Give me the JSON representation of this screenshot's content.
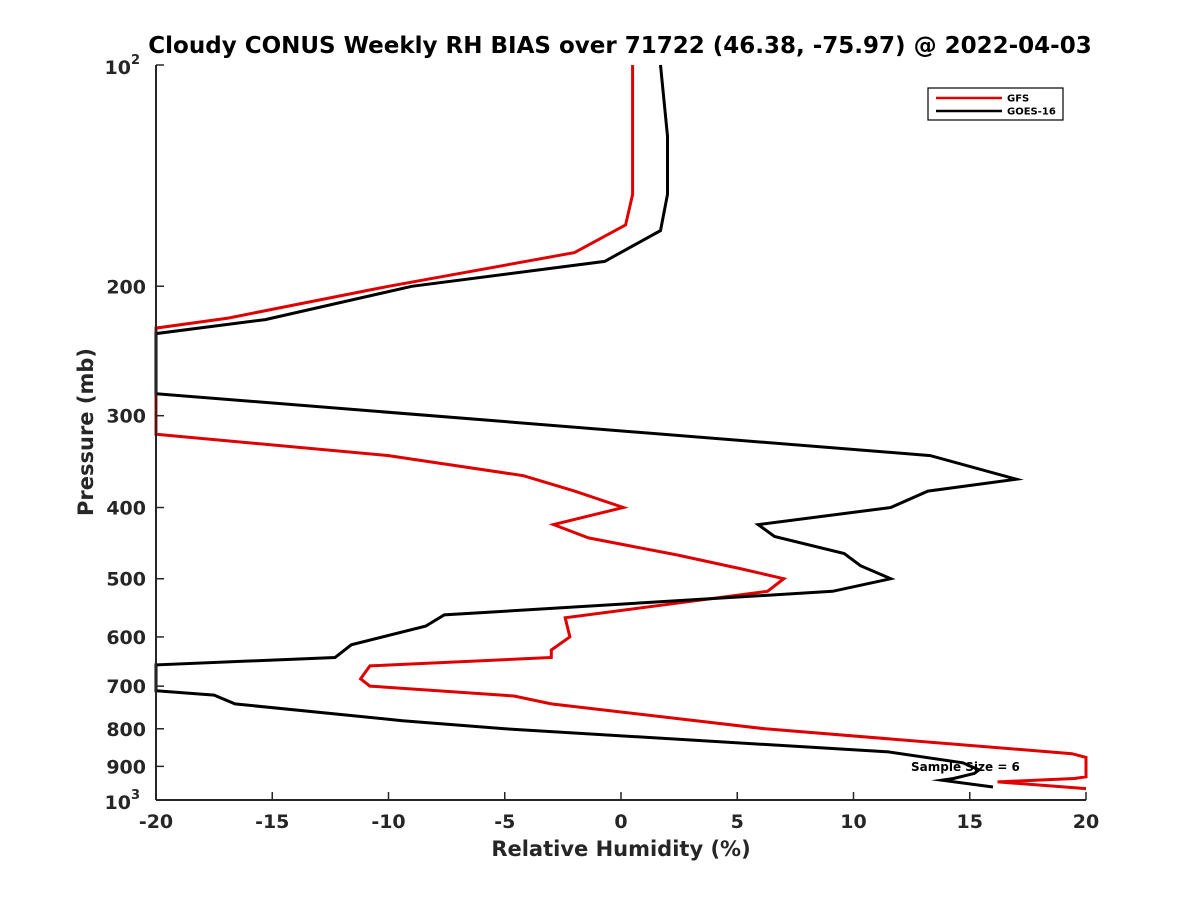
{
  "chart_data": {
    "type": "line",
    "title": "Cloudy CONUS Weekly RH BIAS over 71722 (46.38, -75.97) @ 2022-04-03",
    "xlabel": "Relative Humidity (%)",
    "ylabel": "Pressure (mb)",
    "xlim": [
      -20,
      20
    ],
    "ylim": [
      100,
      1000
    ],
    "y_scale": "log",
    "y_reversed": true,
    "grid": false,
    "legend_position": "top-right",
    "x_ticks": [
      "-20",
      "-15",
      "-10",
      "-5",
      "0",
      "5",
      "10",
      "15",
      "20"
    ],
    "y_ticks": [
      {
        "base": "10",
        "exp": "2",
        "label": ""
      },
      {
        "base": "",
        "exp": "",
        "label": "200"
      },
      {
        "base": "",
        "exp": "",
        "label": "300"
      },
      {
        "base": "",
        "exp": "",
        "label": "400"
      },
      {
        "base": "",
        "exp": "",
        "label": "500"
      },
      {
        "base": "",
        "exp": "",
        "label": "600"
      },
      {
        "base": "",
        "exp": "",
        "label": "700"
      },
      {
        "base": "",
        "exp": "",
        "label": "800"
      },
      {
        "base": "",
        "exp": "",
        "label": "900"
      },
      {
        "base": "10",
        "exp": "3",
        "label": ""
      }
    ],
    "annotation": "Sample Size = 6",
    "series": [
      {
        "name": "GFS",
        "color": "#e00000",
        "points": [
          [
            0.5,
            100
          ],
          [
            0.5,
            125
          ],
          [
            0.5,
            150
          ],
          [
            0.2,
            165
          ],
          [
            -2.0,
            180
          ],
          [
            -10.0,
            200
          ],
          [
            -16.9,
            221
          ],
          [
            -20.0,
            228
          ],
          [
            -20.0,
            318
          ],
          [
            -10.0,
            340
          ],
          [
            -4.2,
            362
          ],
          [
            -2.0,
            380
          ],
          [
            0.1,
            400
          ],
          [
            -2.9,
            422
          ],
          [
            -1.4,
            440
          ],
          [
            2.4,
            464
          ],
          [
            5.2,
            485
          ],
          [
            7.0,
            500
          ],
          [
            6.3,
            520
          ],
          [
            -2.4,
            565
          ],
          [
            -2.2,
            600
          ],
          [
            -3.0,
            625
          ],
          [
            -3.0,
            640
          ],
          [
            -10.8,
            657
          ],
          [
            -11.2,
            684
          ],
          [
            -10.8,
            700
          ],
          [
            -4.6,
            722
          ],
          [
            -3.0,
            740
          ],
          [
            6.2,
            800
          ],
          [
            19.4,
            865
          ],
          [
            20.0,
            875
          ],
          [
            20.0,
            930
          ],
          [
            19.5,
            935
          ],
          [
            16.2,
            945
          ],
          [
            20.0,
            965
          ]
        ]
      },
      {
        "name": "GOES-16",
        "color": "#000000",
        "points": [
          [
            1.7,
            100
          ],
          [
            2.0,
            125
          ],
          [
            2.0,
            150
          ],
          [
            1.7,
            168
          ],
          [
            -0.7,
            185
          ],
          [
            -9.0,
            200
          ],
          [
            -15.3,
            222
          ],
          [
            -20.0,
            232
          ],
          [
            -20.0,
            280
          ],
          [
            13.3,
            340
          ],
          [
            17.0,
            366
          ],
          [
            13.2,
            380
          ],
          [
            11.6,
            400
          ],
          [
            5.9,
            422
          ],
          [
            6.6,
            438
          ],
          [
            9.6,
            462
          ],
          [
            10.3,
            480
          ],
          [
            11.6,
            500
          ],
          [
            9.1,
            520
          ],
          [
            -7.6,
            560
          ],
          [
            -8.4,
            580
          ],
          [
            -11.6,
            615
          ],
          [
            -12.3,
            640
          ],
          [
            -20.0,
            655
          ],
          [
            -20.0,
            710
          ],
          [
            -17.5,
            720
          ],
          [
            -16.6,
            740
          ],
          [
            -9.4,
            780
          ],
          [
            -5.0,
            800
          ],
          [
            11.5,
            860
          ],
          [
            14.7,
            890
          ],
          [
            15.4,
            910
          ],
          [
            15.2,
            920
          ],
          [
            14.3,
            935
          ],
          [
            13.8,
            940
          ],
          [
            16.0,
            960
          ]
        ]
      }
    ]
  }
}
